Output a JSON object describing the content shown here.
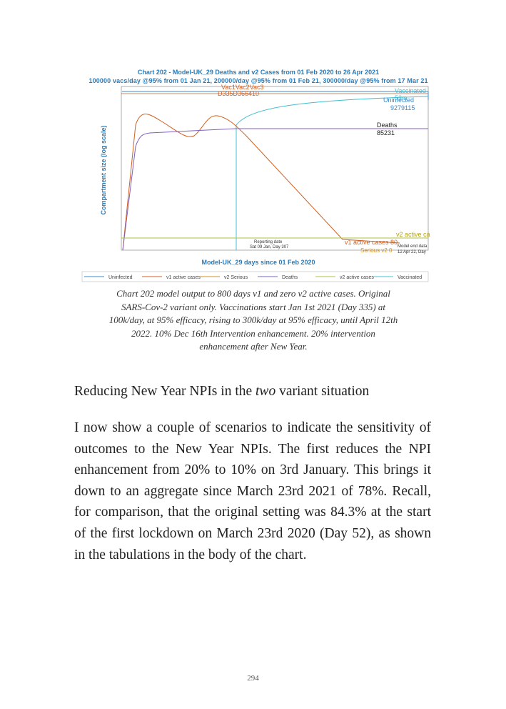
{
  "figure": {
    "chart": {
      "title": "Chart 202 - Model-UK_29 Deaths and v2 Cases from 01 Feb 2020 to 26 Apr 2021",
      "subtitle": "100000 vacs/day @95% from 01 Jan 21, 200000/day @95% from 01 Feb 21, 300000/day @95% from 17 Mar 21",
      "y_axis_label": "Compartment size (log scale)",
      "x_axis_label": "Model-UK_29 days since 01 Feb 2020",
      "legend": [
        "Uninfected",
        "v1 active cases",
        "v2 Serious",
        "Deaths",
        "v2 active cases",
        "Vaccinated"
      ],
      "annotations": {
        "vac_markers": "Vac1Vac2Vac3",
        "day_markers": "D335D366410",
        "vaccinated": "Vaccinated",
        "vaccinated_value": "53m",
        "uninfected": "Uninfected",
        "uninfected_value": "9279115",
        "deaths": "Deaths",
        "deaths_value": "85231",
        "v2_active": "v2 active ca",
        "v1_active": "v1 active cases 80",
        "serious_v2": "Serious v2 0",
        "model_end": "Model end data",
        "model_end_date": "12 Apr 22, Day",
        "reporting": "Reporting date",
        "reporting_date": "Sat 09 Jan, Day 307"
      }
    },
    "caption": "Chart 202 model output to 800 days v1 and zero v2 active cases. Original SARS-Cov-2 variant only. Vaccinations start Jan 1st 2021 (Day 335) at 100k/day, at 95% efficacy, rising to 300k/day at 95% efficacy, until April 12th 2022. 10% Dec 16th Intervention enhancement. 20% intervention enhancement after New Year."
  },
  "section": {
    "heading": {
      "before": "Reducing New Year NPIs in the ",
      "emphasis": "two",
      "after": " variant situation"
    },
    "paragraph": "I now show a couple of scenarios to indicate the sensitivity of outcomes to the New Year NPIs. The first reduces the NPI enhancement from 20% to 10% on 3rd January. This brings it down to an aggregate since March 23rd 2021 of 78%. Recall, for comparison, that the original setting was 84.3% at the start of the first lockdown on March 23rd 2020 (Day 52), as shown in the tabulations in the body of the chart."
  },
  "footer": {
    "page_number": "294"
  }
}
